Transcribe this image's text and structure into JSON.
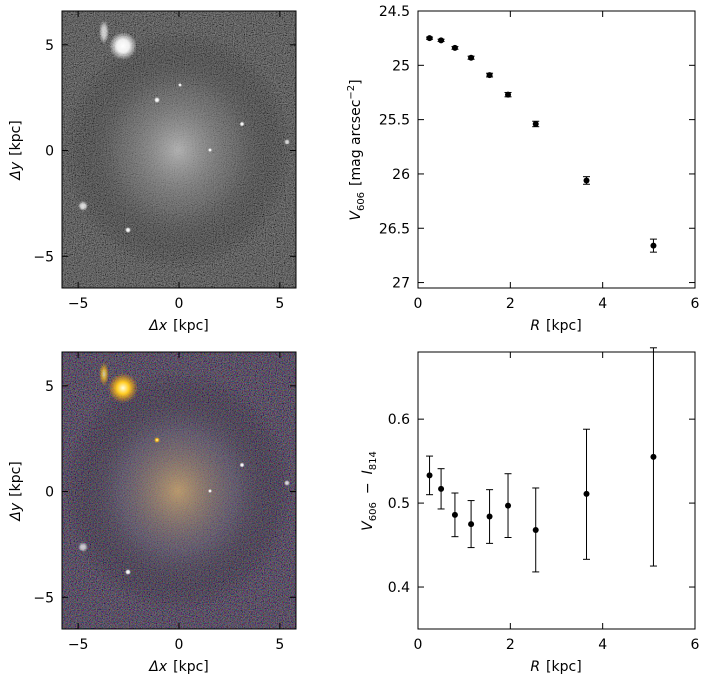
{
  "chart_data": [
    {
      "type": "image",
      "panel": "top-left",
      "description_label": "grayscale image",
      "xlabel_symbol": "Δx",
      "xlabel_unit": "[kpc]",
      "ylabel_symbol": "Δy",
      "ylabel_unit": "[kpc]",
      "xlim": [
        -5.8,
        5.8
      ],
      "ylim": [
        -6.5,
        6.6
      ],
      "xticks": [
        -5,
        0,
        5
      ],
      "yticks": [
        -5,
        0,
        5
      ],
      "xtick_labels": [
        "−5",
        "0",
        "5"
      ],
      "ytick_labels": [
        "−5",
        "0",
        "5"
      ]
    },
    {
      "type": "scatter",
      "panel": "top-right",
      "xlabel_symbol": "R",
      "xlabel_unit": "[kpc]",
      "ylabel_main": "V",
      "ylabel_sub": "606",
      "ylabel_unit": "[mag arcsec",
      "ylabel_sup": "−2",
      "ylabel_close": "]",
      "xlim": [
        0,
        6
      ],
      "ylim": [
        27.05,
        24.5
      ],
      "y_inverted": true,
      "xticks": [
        0,
        2,
        4,
        6
      ],
      "yticks": [
        24.5,
        25,
        25.5,
        26,
        26.5,
        27
      ],
      "xtick_labels": [
        "0",
        "2",
        "4",
        "6"
      ],
      "ytick_labels": [
        "24.5",
        "25",
        "25.5",
        "26",
        "26.5",
        "27"
      ],
      "x": [
        0.25,
        0.5,
        0.8,
        1.15,
        1.55,
        1.95,
        2.55,
        3.65,
        5.1
      ],
      "y": [
        24.75,
        24.77,
        24.84,
        24.93,
        25.09,
        25.27,
        25.54,
        26.06,
        26.66
      ],
      "yerr": [
        0.01,
        0.01,
        0.012,
        0.014,
        0.017,
        0.02,
        0.025,
        0.035,
        0.06
      ]
    },
    {
      "type": "image",
      "panel": "bottom-left",
      "description_label": "color image",
      "xlabel_symbol": "Δx",
      "xlabel_unit": "[kpc]",
      "ylabel_symbol": "Δy",
      "ylabel_unit": "[kpc]",
      "xlim": [
        -5.8,
        5.8
      ],
      "ylim": [
        -6.5,
        6.6
      ],
      "xticks": [
        -5,
        0,
        5
      ],
      "yticks": [
        -5,
        0,
        5
      ],
      "xtick_labels": [
        "−5",
        "0",
        "5"
      ],
      "ytick_labels": [
        "−5",
        "0",
        "5"
      ]
    },
    {
      "type": "scatter",
      "panel": "bottom-right",
      "xlabel_symbol": "R",
      "xlabel_unit": "[kpc]",
      "ylabel_main": "V",
      "ylabel_sub": "606",
      "ylabel_minus": "−",
      "ylabel_main2": "I",
      "ylabel_sub2": "814",
      "xlim": [
        0,
        6
      ],
      "ylim": [
        0.35,
        0.68
      ],
      "xticks": [
        0,
        2,
        4,
        6
      ],
      "yticks": [
        0.4,
        0.5,
        0.6
      ],
      "xtick_labels": [
        "0",
        "2",
        "4",
        "6"
      ],
      "ytick_labels": [
        "0.4",
        "0.5",
        "0.6"
      ],
      "x": [
        0.25,
        0.5,
        0.8,
        1.15,
        1.55,
        1.95,
        2.55,
        3.65,
        5.1
      ],
      "y": [
        0.533,
        0.517,
        0.486,
        0.475,
        0.484,
        0.497,
        0.468,
        0.511,
        0.555
      ],
      "yerr_low": [
        0.023,
        0.024,
        0.026,
        0.028,
        0.032,
        0.038,
        0.05,
        0.078,
        0.13
      ],
      "yerr_high": [
        0.023,
        0.024,
        0.026,
        0.028,
        0.032,
        0.038,
        0.05,
        0.077,
        0.13
      ]
    }
  ]
}
